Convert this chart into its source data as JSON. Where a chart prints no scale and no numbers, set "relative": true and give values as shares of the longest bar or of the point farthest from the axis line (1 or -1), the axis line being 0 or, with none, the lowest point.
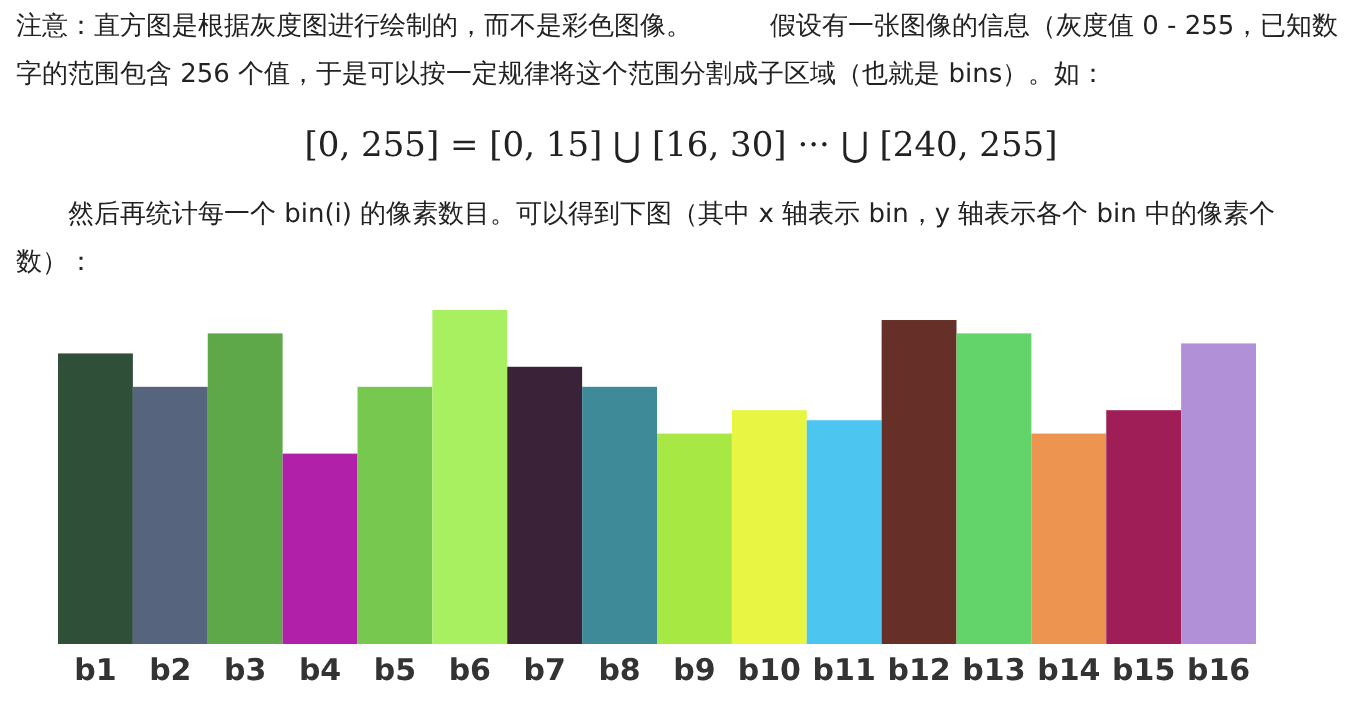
{
  "chart_data": {
    "type": "bar",
    "relative": true,
    "annotations": [
      "注意：直方图是根据灰度图进行绘制的，而不是彩色图像。　　　假设有一张图像的信息（灰度值 0 - 255，已知数字的范围包含 256 个值，于是可以按一定规律将这个范围分割成子区域（也就是 bins）。如：",
      "[0, 255] = [0, 15] ⋃ [16, 30] ··· ⋃ [240, 255]",
      "然后再统计每一个 bin(i) 的像素数目。可以得到下图（其中 x 轴表示 bin，y 轴表示各个 bin 中的像素个数）："
    ],
    "categories": [
      "b1",
      "b2",
      "b3",
      "b4",
      "b5",
      "b6",
      "b7",
      "b8",
      "b9",
      "b10",
      "b11",
      "b12",
      "b13",
      "b14",
      "b15",
      "b16"
    ],
    "values": [
      0.87,
      0.77,
      0.93,
      0.57,
      0.77,
      1,
      0.83,
      0.77,
      0.63,
      0.7,
      0.67,
      0.97,
      0.93,
      0.63,
      0.7,
      0.9
    ],
    "colors": [
      "#2f4f38",
      "#56647e",
      "#5ea84a",
      "#b020a8",
      "#76c94e",
      "#a8f060",
      "#3a2238",
      "#3e8a98",
      "#a8e845",
      "#e8f542",
      "#4cc6f0",
      "#663028",
      "#62d46a",
      "#ec9450",
      "#a01e58",
      "#b290d8"
    ]
  }
}
